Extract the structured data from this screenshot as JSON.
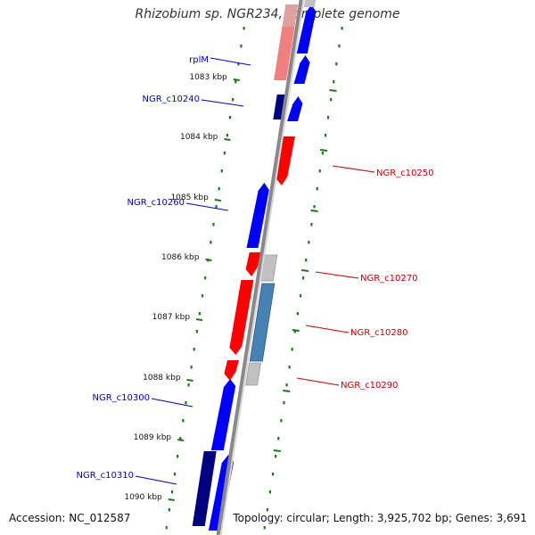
{
  "title": "Rhizobium sp. NGR234, complete genome",
  "accession": "Accession: NC_012587",
  "summary": "Topology: circular; Length: 3,925,702 bp; Genes: 3,691",
  "ticks": [
    "1083 kbp",
    "1084 kbp",
    "1085 kbp",
    "1086 kbp",
    "1087 kbp",
    "1088 kbp",
    "1089 kbp",
    "1090 kbp"
  ],
  "genes": [
    {
      "name": "rplM",
      "strand": "forward",
      "color": "#0000cc"
    },
    {
      "name": "NGR_c10240",
      "strand": "forward",
      "color": "#0000cc"
    },
    {
      "name": "NGR_c10250",
      "strand": "reverse",
      "color": "#cc0000"
    },
    {
      "name": "NGR_c10260",
      "strand": "forward",
      "color": "#0000cc"
    },
    {
      "name": "NGR_c10270",
      "strand": "reverse",
      "color": "#cc0000"
    },
    {
      "name": "NGR_c10280",
      "strand": "reverse",
      "color": "#cc0000"
    },
    {
      "name": "NGR_c10290",
      "strand": "reverse",
      "color": "#cc0000"
    },
    {
      "name": "NGR_c10300",
      "strand": "forward",
      "color": "#0000cc"
    },
    {
      "name": "NGR_c10310",
      "strand": "forward",
      "color": "#0000cc"
    }
  ],
  "colors": {
    "forward_gene": "#0000ff",
    "forward_gene_dark": "#000080",
    "reverse_gene": "#ff0000",
    "gray_feature": "#c0c0c0",
    "steelblue_feature": "#4682b4",
    "pink_feature": "#f08080",
    "backbone": "#888888",
    "grid": "#1a7a1a"
  }
}
